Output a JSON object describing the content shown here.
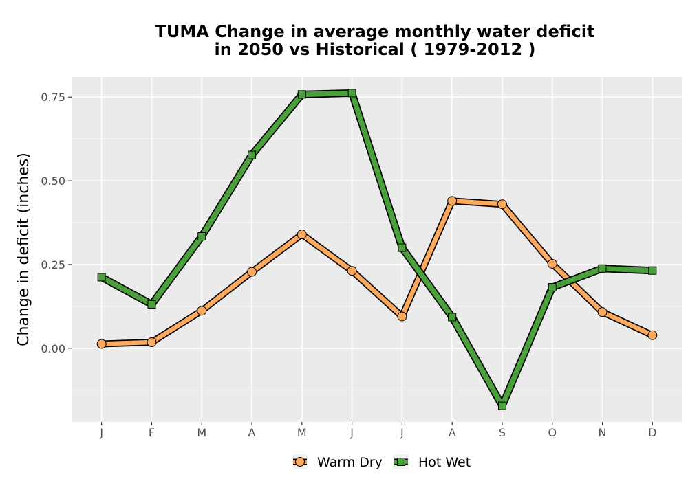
{
  "chart_data": {
    "type": "line",
    "title_lines": [
      "TUMA  Change in average monthly water deficit",
      "in 2050 vs Historical ( 1979-2012 )"
    ],
    "xlabel": "",
    "ylabel": "Change in deficit (inches)",
    "categories": [
      "J",
      "F",
      "M",
      "A",
      "M",
      "J",
      "J",
      "A",
      "S",
      "O",
      "N",
      "D"
    ],
    "yticks": [
      0.0,
      0.25,
      0.5,
      0.75
    ],
    "ytick_labels": [
      "0.00",
      "0.25",
      "0.50",
      "0.75"
    ],
    "ylim": [
      -0.22,
      0.81
    ],
    "grid": true,
    "legend_position": "bottom",
    "series": [
      {
        "name": "Warm Dry",
        "marker": "circle",
        "color": "#fdaa5f",
        "values": [
          0.013,
          0.018,
          0.112,
          0.228,
          0.34,
          0.231,
          0.095,
          0.44,
          0.43,
          0.252,
          0.108,
          0.039
        ]
      },
      {
        "name": "Hot Wet",
        "marker": "square",
        "color": "#4aa03a",
        "values": [
          0.212,
          0.131,
          0.334,
          0.577,
          0.758,
          0.762,
          0.3,
          0.093,
          -0.172,
          0.182,
          0.238,
          0.232
        ]
      }
    ]
  }
}
